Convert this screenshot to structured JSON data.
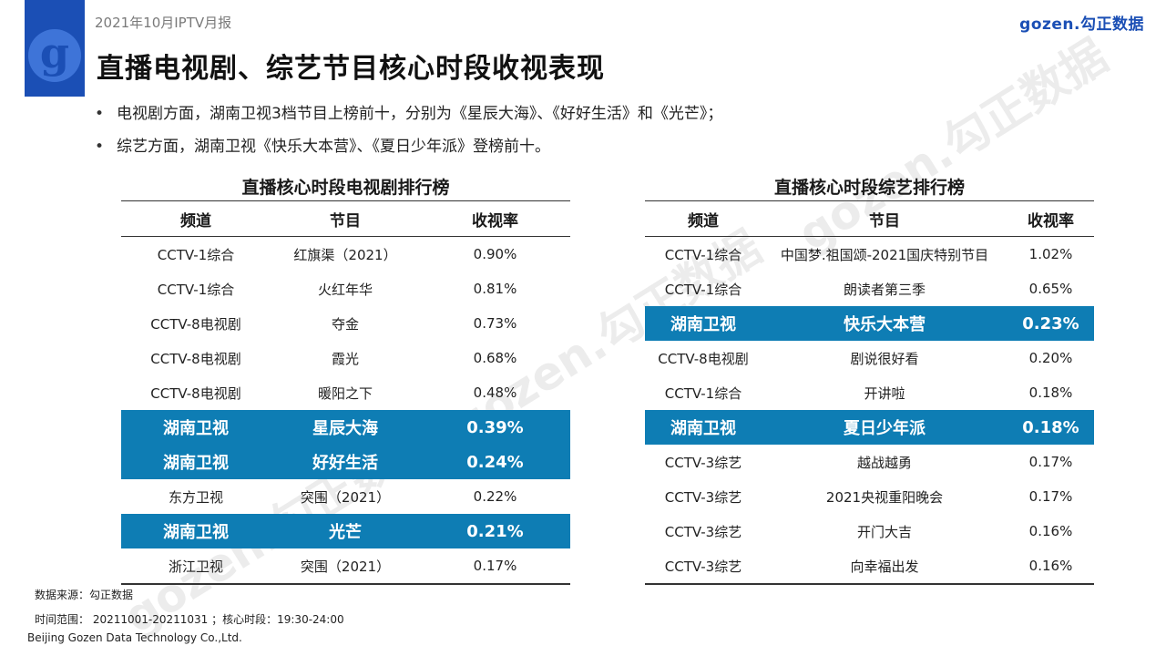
{
  "header": {
    "report_label": "2021年10月IPTV月报",
    "logo_letter": "g",
    "brand": "gozen.勾正数据",
    "page_title": "直播电视剧、综艺节目核心时段收视表现"
  },
  "bullets": [
    "电视剧方面，湖南卫视3档节目上榜前十，分别为《星辰大海》、《好好生活》和《光芒》；",
    "综艺方面，湖南卫视《快乐大本营》、《夏日少年派》登榜前十。"
  ],
  "bullet_symbol": "•",
  "watermark_text": "gozen.勾正数据",
  "highlight_color": "#0e7db4",
  "drama_table": {
    "title": "直播核心时段电视剧排行榜",
    "headers": [
      "频道",
      "节目",
      "收视率"
    ],
    "rows": [
      {
        "channel": "CCTV-1综合",
        "program": "红旗渠（2021）",
        "rating": "0.90%",
        "highlight": false
      },
      {
        "channel": "CCTV-1综合",
        "program": "火红年华",
        "rating": "0.81%",
        "highlight": false
      },
      {
        "channel": "CCTV-8电视剧",
        "program": "夺金",
        "rating": "0.73%",
        "highlight": false
      },
      {
        "channel": "CCTV-8电视剧",
        "program": "霞光",
        "rating": "0.68%",
        "highlight": false
      },
      {
        "channel": "CCTV-8电视剧",
        "program": "暖阳之下",
        "rating": "0.48%",
        "highlight": false
      },
      {
        "channel": "湖南卫视",
        "program": "星辰大海",
        "rating": "0.39%",
        "highlight": true
      },
      {
        "channel": "湖南卫视",
        "program": "好好生活",
        "rating": "0.24%",
        "highlight": true
      },
      {
        "channel": "东方卫视",
        "program": "突围（2021）",
        "rating": "0.22%",
        "highlight": false
      },
      {
        "channel": "湖南卫视",
        "program": "光芒",
        "rating": "0.21%",
        "highlight": true
      },
      {
        "channel": "浙江卫视",
        "program": "突围（2021）",
        "rating": "0.17%",
        "highlight": false
      }
    ]
  },
  "variety_table": {
    "title": "直播核心时段综艺排行榜",
    "headers": [
      "频道",
      "节目",
      "收视率"
    ],
    "rows": [
      {
        "channel": "CCTV-1综合",
        "program": "中国梦.祖国颂-2021国庆特别节目",
        "rating": "1.02%",
        "highlight": false
      },
      {
        "channel": "CCTV-1综合",
        "program": "朗读者第三季",
        "rating": "0.65%",
        "highlight": false
      },
      {
        "channel": "湖南卫视",
        "program": "快乐大本营",
        "rating": "0.23%",
        "highlight": true
      },
      {
        "channel": "CCTV-8电视剧",
        "program": "剧说很好看",
        "rating": "0.20%",
        "highlight": false
      },
      {
        "channel": "CCTV-1综合",
        "program": "开讲啦",
        "rating": "0.18%",
        "highlight": false
      },
      {
        "channel": "湖南卫视",
        "program": "夏日少年派",
        "rating": "0.18%",
        "highlight": true
      },
      {
        "channel": "CCTV-3综艺",
        "program": "越战越勇",
        "rating": "0.17%",
        "highlight": false
      },
      {
        "channel": "CCTV-3综艺",
        "program": "2021央视重阳晚会",
        "rating": "0.17%",
        "highlight": false
      },
      {
        "channel": "CCTV-3综艺",
        "program": "开门大吉",
        "rating": "0.16%",
        "highlight": false
      },
      {
        "channel": "CCTV-3综艺",
        "program": "向幸福出发",
        "rating": "0.16%",
        "highlight": false
      }
    ]
  },
  "footer": {
    "source": "数据来源：勾正数据",
    "time_range": "时间范围： 20211001-20211031 ；核心时段：19:30-24:00",
    "company": "Beijing Gozen Data Technology Co.,Ltd."
  }
}
